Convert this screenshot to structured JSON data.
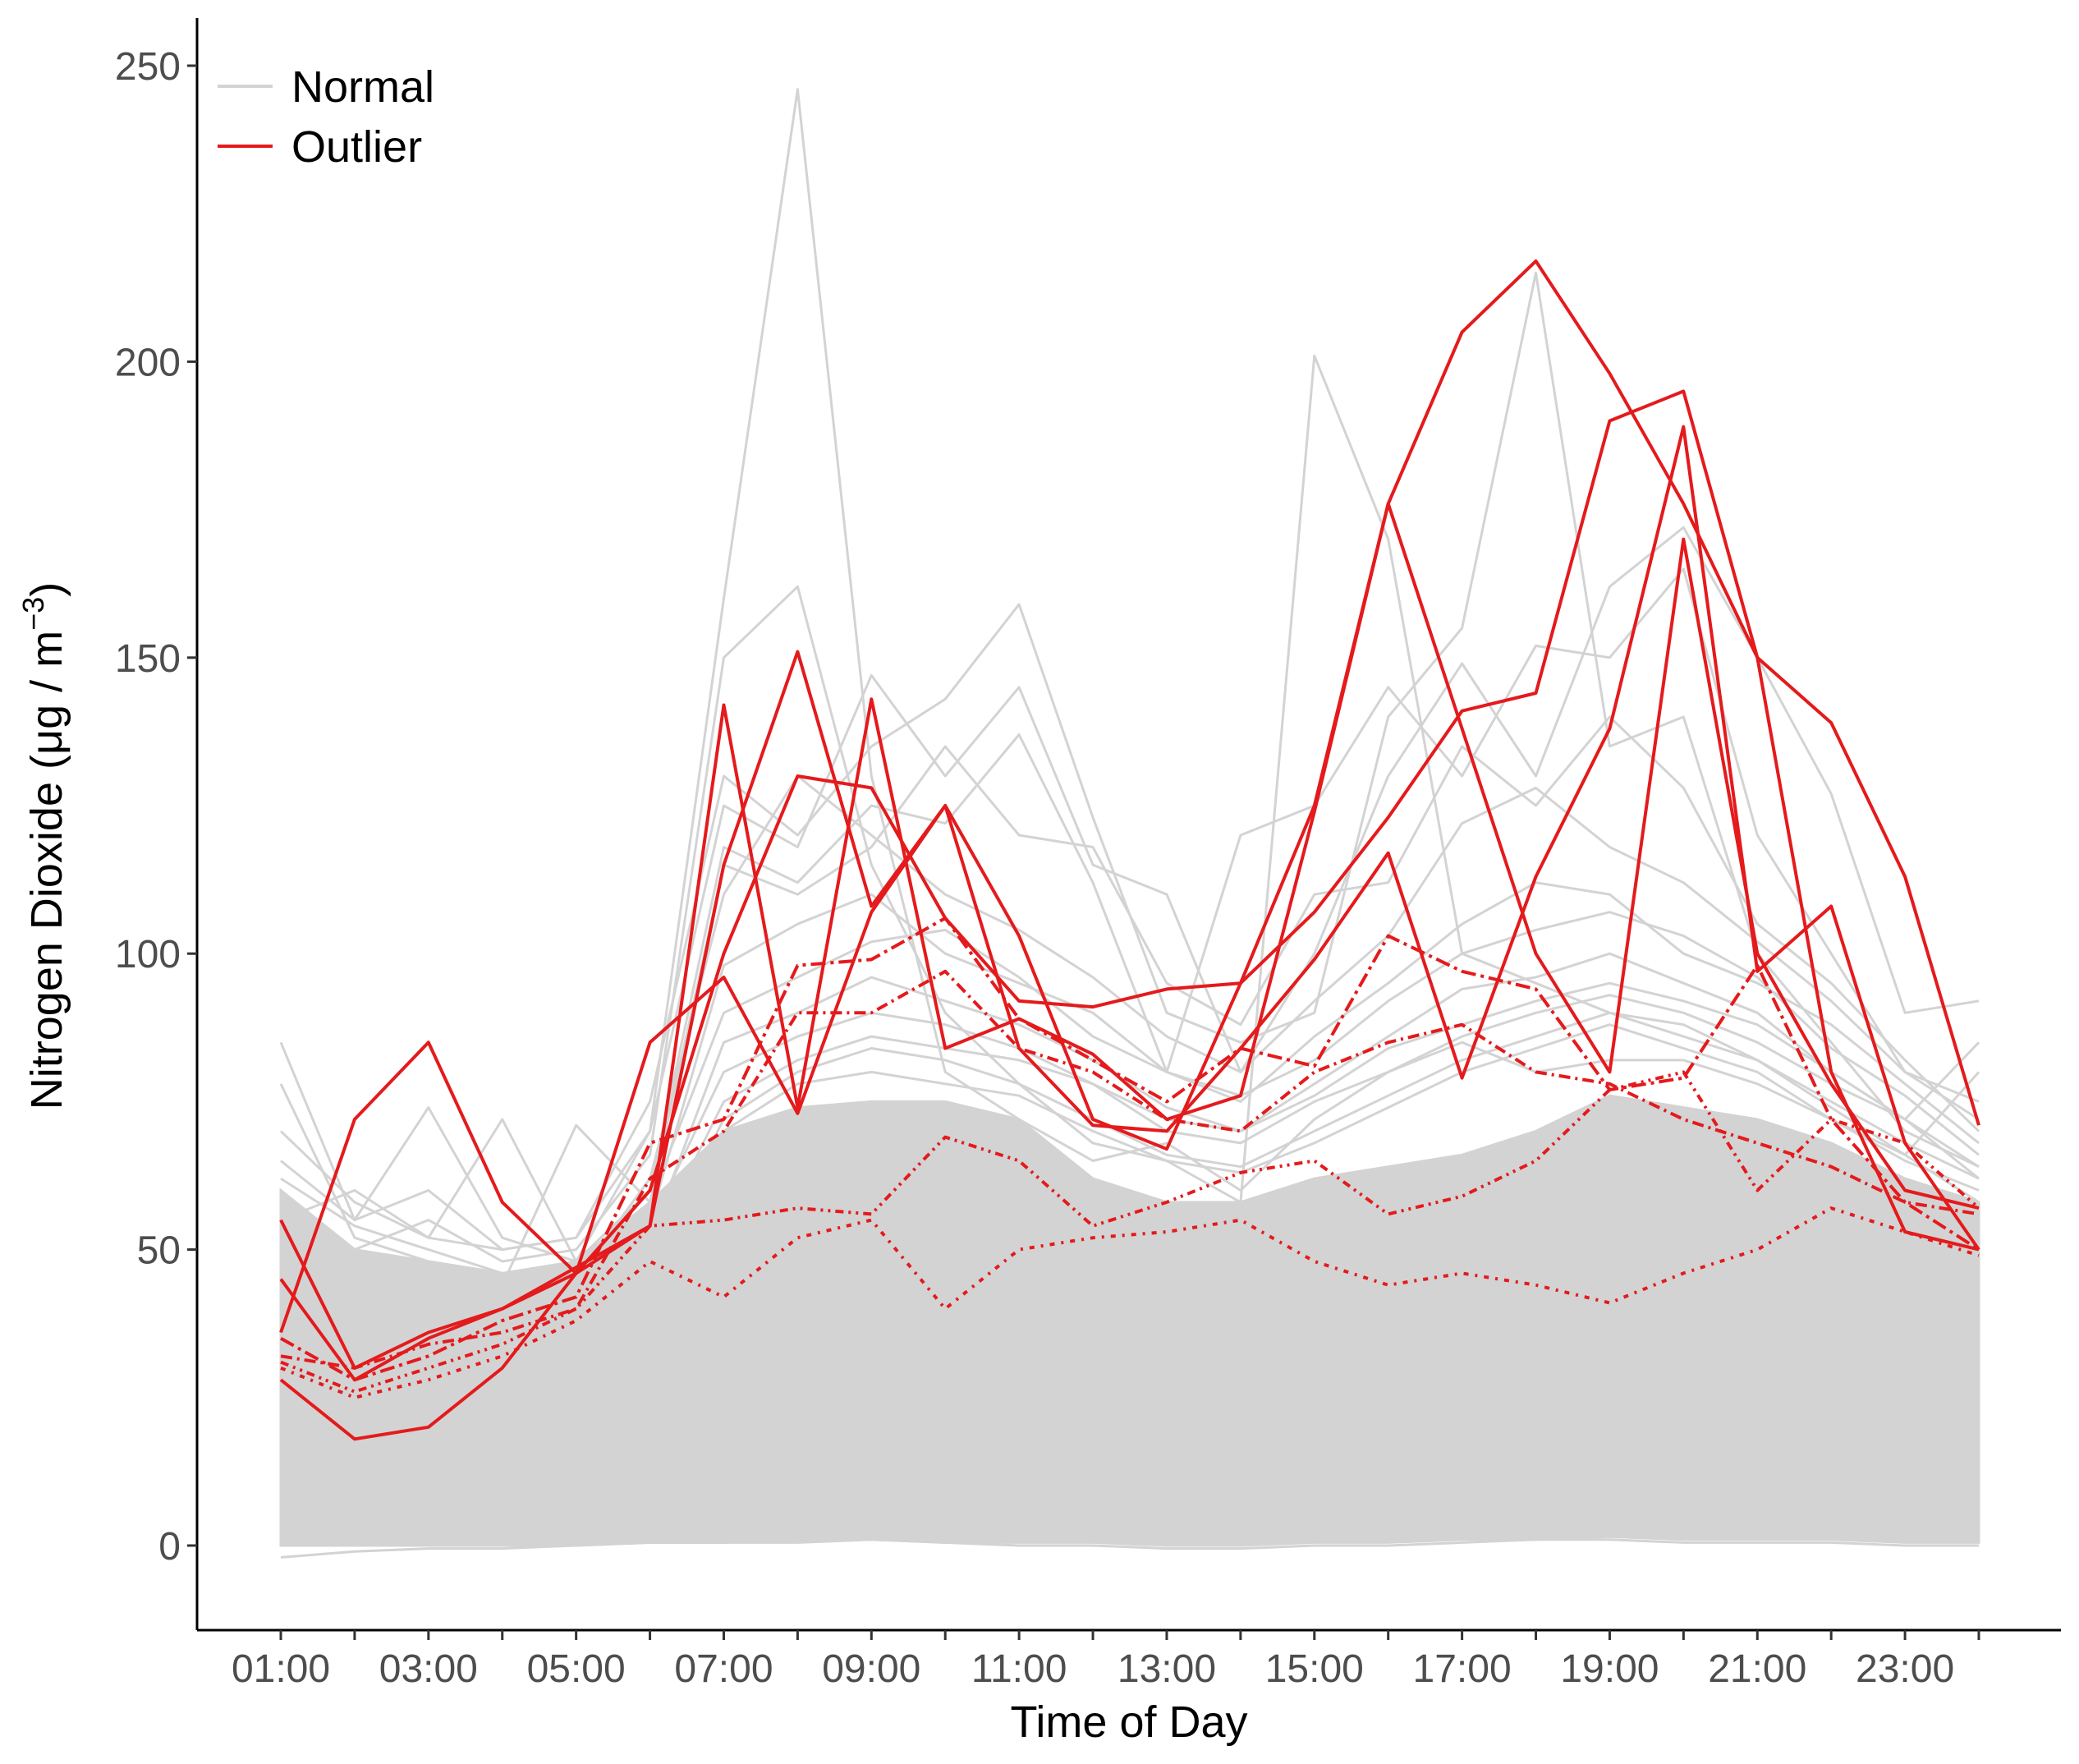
{
  "chart_data": {
    "type": "line",
    "title": "",
    "xlabel": "Time of Day",
    "ylabel": "Nitrogen Dioxide",
    "ylabel_unit": "(μg / m−3)",
    "ylabel_parts": {
      "open": "(",
      "mu": "μ",
      "g": "g",
      "slash": "/",
      "m": "m",
      "exp": "−3",
      "close": ")"
    },
    "hours": [
      "01:00",
      "02:00",
      "03:00",
      "04:00",
      "05:00",
      "06:00",
      "07:00",
      "08:00",
      "09:00",
      "10:00",
      "11:00",
      "12:00",
      "13:00",
      "14:00",
      "15:00",
      "16:00",
      "17:00",
      "18:00",
      "19:00",
      "20:00",
      "21:00",
      "22:00",
      "23:00",
      "24:00"
    ],
    "x_tick_labels": [
      "01:00",
      "03:00",
      "05:00",
      "07:00",
      "09:00",
      "11:00",
      "13:00",
      "15:00",
      "17:00",
      "19:00",
      "21:00",
      "23:00"
    ],
    "y_ticks": [
      0,
      50,
      100,
      150,
      200,
      250
    ],
    "ylim": [
      -14,
      258
    ],
    "grid": false,
    "legend": {
      "position": "top-left",
      "entries": [
        {
          "label": "Normal",
          "color": "#d3d3d3"
        },
        {
          "label": "Outlier",
          "color": "#e41a1c"
        }
      ]
    },
    "colors": {
      "normal": "#d3d3d3",
      "outlier": "#e41a1c",
      "axis": "#000000",
      "tick_text": "#4d4d4d"
    },
    "normal_band": {
      "low": [
        0,
        0,
        0,
        0,
        0,
        0.5,
        0.5,
        0.5,
        1,
        0.5,
        0.5,
        0.5,
        0,
        0,
        0.5,
        0.5,
        1,
        1,
        1.5,
        1,
        1,
        1,
        0.5,
        0.5
      ],
      "high": [
        60,
        50,
        48,
        46,
        48,
        58,
        70,
        74,
        75,
        75,
        72,
        62,
        58,
        58,
        62,
        64,
        66,
        70,
        76,
        74,
        72,
        68,
        62,
        58
      ]
    },
    "series": [
      {
        "class": "normal",
        "values": [
          85,
          55,
          60,
          50,
          52,
          70,
          160,
          246,
          130,
          80,
          72,
          65,
          68,
          60,
          72,
          80,
          85,
          80,
          82,
          82,
          78,
          72,
          65,
          60
        ]
      },
      {
        "class": "normal",
        "values": [
          60,
          50,
          55,
          48,
          50,
          66,
          150,
          162,
          115,
          90,
          78,
          68,
          65,
          58,
          201,
          170,
          100,
          95,
          90,
          88,
          82,
          75,
          68,
          62
        ]
      },
      {
        "class": "normal",
        "values": [
          70,
          58,
          52,
          50,
          52,
          75,
          130,
          120,
          135,
          143,
          159,
          123,
          90,
          85,
          90,
          140,
          155,
          215,
          135,
          140,
          100,
          85,
          70,
          64
        ]
      },
      {
        "class": "normal",
        "values": [
          65,
          55,
          74,
          52,
          48,
          70,
          125,
          118,
          147,
          130,
          145,
          115,
          110,
          80,
          100,
          130,
          149,
          130,
          162,
          172,
          150,
          127,
          90,
          92
        ]
      },
      {
        "class": "normal",
        "values": [
          55,
          60,
          52,
          72,
          48,
          60,
          118,
          112,
          125,
          122,
          137,
          112,
          80,
          120,
          125,
          145,
          130,
          152,
          150,
          165,
          120,
          100,
          80,
          75
        ]
      },
      {
        "class": "normal",
        "values": [
          50,
          48,
          46,
          44,
          71,
          58,
          115,
          110,
          118,
          135,
          120,
          118,
          95,
          88,
          110,
          112,
          135,
          125,
          140,
          128,
          105,
          95,
          82,
          70
        ]
      },
      {
        "class": "normal",
        "values": [
          62,
          54,
          50,
          46,
          45,
          62,
          110,
          130,
          120,
          110,
          104,
          96,
          86,
          80,
          92,
          103,
          122,
          128,
          118,
          112,
          102,
          92,
          80,
          72
        ]
      },
      {
        "class": "normal",
        "values": [
          45,
          42,
          40,
          38,
          44,
          55,
          98,
          105,
          110,
          100,
          95,
          90,
          80,
          75,
          86,
          95,
          105,
          112,
          110,
          100,
          95,
          88,
          78,
          68
        ]
      },
      {
        "class": "normal",
        "values": [
          56,
          50,
          46,
          44,
          47,
          58,
          90,
          96,
          102,
          104,
          96,
          86,
          80,
          76,
          82,
          92,
          100,
          104,
          107,
          103,
          96,
          84,
          76,
          66
        ]
      },
      {
        "class": "normal",
        "values": [
          42,
          40,
          38,
          36,
          40,
          52,
          85,
          90,
          96,
          92,
          88,
          82,
          74,
          70,
          78,
          86,
          94,
          96,
          100,
          95,
          90,
          80,
          72,
          64
        ]
      },
      {
        "class": "normal",
        "values": [
          50,
          46,
          44,
          42,
          44,
          54,
          80,
          86,
          90,
          88,
          84,
          78,
          72,
          70,
          76,
          84,
          88,
          92,
          95,
          92,
          88,
          80,
          72,
          62
        ]
      },
      {
        "class": "normal",
        "values": [
          78,
          52,
          48,
          46,
          46,
          50,
          75,
          82,
          86,
          84,
          82,
          78,
          70,
          68,
          75,
          80,
          86,
          90,
          93,
          90,
          85,
          78,
          72,
          85
        ]
      },
      {
        "class": "normal",
        "values": [
          38,
          36,
          34,
          34,
          38,
          48,
          72,
          80,
          84,
          82,
          78,
          72,
          66,
          64,
          70,
          76,
          82,
          86,
          90,
          86,
          82,
          74,
          66,
          58
        ]
      },
      {
        "class": "normal",
        "values": [
          48,
          44,
          42,
          40,
          42,
          52,
          70,
          78,
          80,
          78,
          76,
          70,
          65,
          63,
          68,
          74,
          80,
          84,
          88,
          84,
          80,
          72,
          66,
          80
        ]
      },
      {
        "class": "normal",
        "values": [
          -2,
          -1,
          -0.5,
          -0.5,
          0,
          0.5,
          0.5,
          1,
          1,
          0.5,
          0,
          0,
          -0.5,
          -0.5,
          0,
          0,
          0.5,
          1,
          1,
          0.5,
          0.5,
          0.5,
          0,
          0
        ]
      },
      {
        "class": "outlier",
        "dash": "",
        "values": [
          36,
          72,
          85,
          58,
          46,
          54,
          142,
          74,
          143,
          84,
          89,
          83,
          72,
          76,
          124,
          176,
          205,
          217,
          198,
          176,
          150,
          139,
          113,
          71
        ]
      },
      {
        "class": "outlier",
        "dash": "",
        "values": [
          55,
          30,
          36,
          40,
          47,
          54,
          115,
          151,
          108,
          125,
          103,
          72,
          67,
          95,
          107,
          123,
          141,
          144,
          190,
          195,
          150,
          80,
          53,
          50
        ]
      },
      {
        "class": "outlier",
        "dash": "",
        "values": [
          28,
          18,
          20,
          30,
          46,
          85,
          96,
          73,
          107,
          125,
          84,
          71,
          70,
          84,
          99,
          117,
          79,
          113,
          138,
          189,
          97,
          108,
          68,
          50
        ]
      },
      {
        "class": "outlier",
        "dash": "",
        "values": [
          45,
          28,
          35,
          40,
          46,
          60,
          100,
          130,
          128,
          106,
          92,
          91,
          94,
          95,
          125,
          176,
          138,
          100,
          80,
          170,
          100,
          78,
          60,
          57
        ]
      },
      {
        "class": "outlier",
        "dash": "18 6 4 6",
        "values": [
          35,
          28,
          32,
          38,
          42,
          68,
          72,
          98,
          99,
          106,
          89,
          82,
          75,
          84,
          81,
          103,
          97,
          94,
          77,
          79,
          98,
          72,
          58,
          50
        ]
      },
      {
        "class": "outlier",
        "dash": "14 6 3 6",
        "values": [
          32,
          30,
          34,
          36,
          40,
          62,
          70,
          90,
          90,
          97,
          84,
          80,
          72,
          70,
          80,
          85,
          88,
          80,
          78,
          72,
          68,
          64,
          58,
          56
        ]
      },
      {
        "class": "outlier",
        "dash": "10 6 3 6 3 6",
        "values": [
          31,
          26,
          30,
          34,
          40,
          54,
          55,
          57,
          56,
          69,
          65,
          54,
          58,
          63,
          65,
          56,
          59,
          65,
          77,
          80,
          60,
          72,
          68,
          57
        ]
      },
      {
        "class": "outlier",
        "dash": "6 8 3 8",
        "values": [
          30,
          25,
          28,
          32,
          38,
          48,
          42,
          52,
          55,
          40,
          50,
          52,
          53,
          55,
          48,
          44,
          46,
          44,
          41,
          46,
          50,
          57,
          53,
          49
        ]
      }
    ]
  }
}
